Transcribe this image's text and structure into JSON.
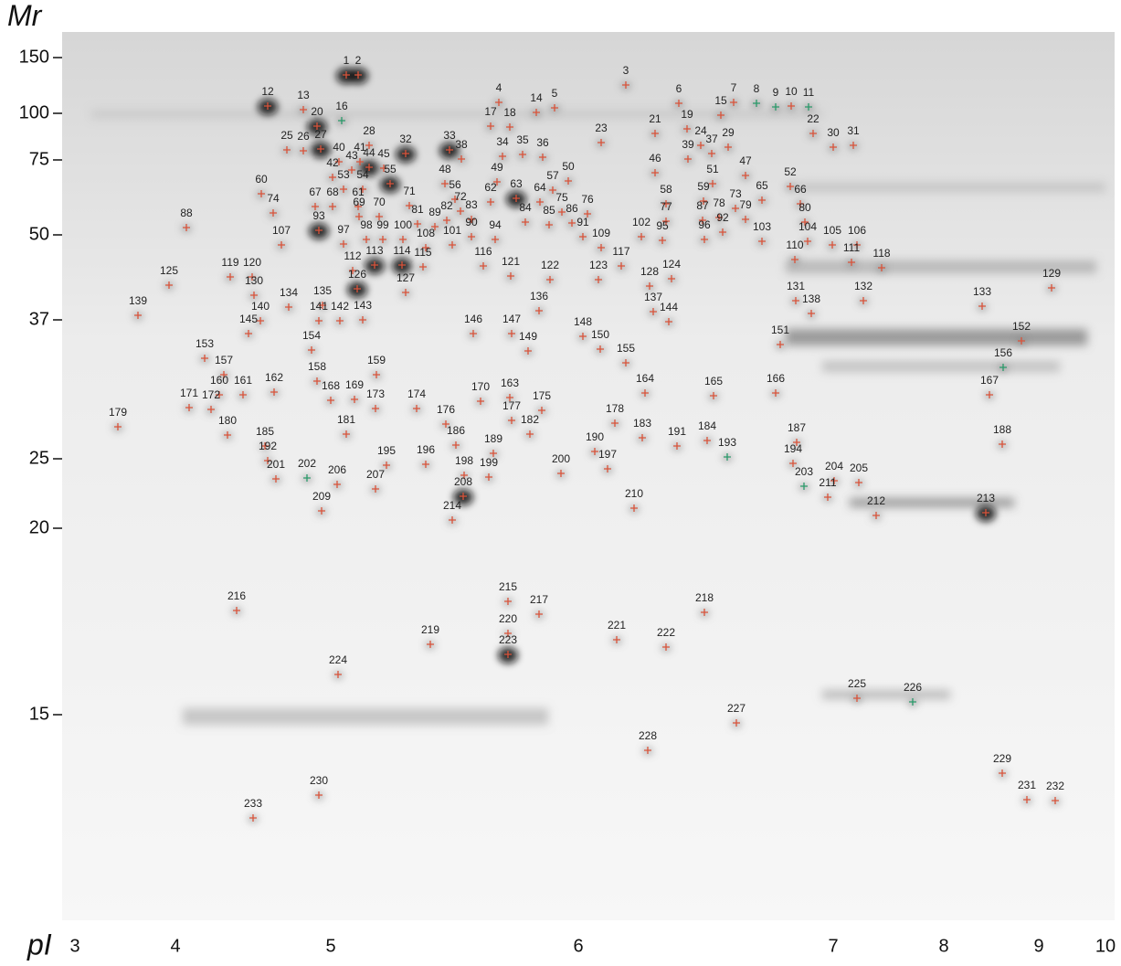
{
  "axes": {
    "y_label": "Mr",
    "y_ticks": [
      "150",
      "100",
      "75",
      "50",
      "37",
      "25",
      "20",
      "15"
    ],
    "x_label": "pI",
    "x_ticks": [
      "3",
      "4",
      "5",
      "6",
      "7",
      "8",
      "9",
      "10"
    ]
  },
  "spots": [
    "1",
    "2",
    "3",
    "4",
    "5",
    "6",
    "7",
    "8",
    "9",
    "10",
    "11",
    "12",
    "13",
    "14",
    "15",
    "16",
    "17",
    "18",
    "19",
    "20",
    "21",
    "22",
    "23",
    "24",
    "25",
    "26",
    "27",
    "28",
    "29",
    "30",
    "31",
    "32",
    "33",
    "34",
    "35",
    "36",
    "37",
    "38",
    "39",
    "40",
    "41",
    "42",
    "43",
    "44",
    "45",
    "46",
    "47",
    "48",
    "49",
    "50",
    "51",
    "52",
    "53",
    "54",
    "55",
    "56",
    "57",
    "58",
    "59",
    "60",
    "61",
    "62",
    "63",
    "64",
    "65",
    "66",
    "67",
    "68",
    "69",
    "70",
    "71",
    "72",
    "73",
    "74",
    "75",
    "76",
    "77",
    "78",
    "79",
    "80",
    "81",
    "82",
    "83",
    "84",
    "85",
    "86",
    "87",
    "88",
    "89",
    "90",
    "91",
    "92",
    "93",
    "94",
    "95",
    "96",
    "97",
    "98",
    "99",
    "100",
    "101",
    "102",
    "103",
    "104",
    "105",
    "106",
    "107",
    "108",
    "109",
    "110",
    "111",
    "112",
    "113",
    "114",
    "115",
    "116",
    "117",
    "118",
    "119",
    "120",
    "121",
    "122",
    "123",
    "124",
    "125",
    "126",
    "127",
    "128",
    "129",
    "130",
    "131",
    "132",
    "133",
    "134",
    "135",
    "136",
    "137",
    "138",
    "139",
    "140",
    "141",
    "142",
    "143",
    "144",
    "145",
    "146",
    "147",
    "148",
    "149",
    "150",
    "151",
    "152",
    "153",
    "154",
    "155",
    "156",
    "157",
    "158",
    "159",
    "160",
    "161",
    "162",
    "163",
    "164",
    "165",
    "166",
    "167",
    "168",
    "169",
    "170",
    "171",
    "172",
    "173",
    "174",
    "175",
    "176",
    "177",
    "178",
    "179",
    "180",
    "181",
    "182",
    "183",
    "184",
    "185",
    "186",
    "187",
    "188",
    "189",
    "190",
    "191",
    "192",
    "193",
    "194",
    "195",
    "196",
    "197",
    "198",
    "199",
    "200",
    "201",
    "202",
    "203",
    "204",
    "205",
    "206",
    "207",
    "208",
    "209",
    "210",
    "211",
    "212",
    "213",
    "214",
    "215",
    "216",
    "217",
    "218",
    "219",
    "220",
    "221",
    "222",
    "223",
    "224",
    "225",
    "226",
    "227",
    "228",
    "229",
    "230",
    "231",
    "232",
    "233"
  ]
}
